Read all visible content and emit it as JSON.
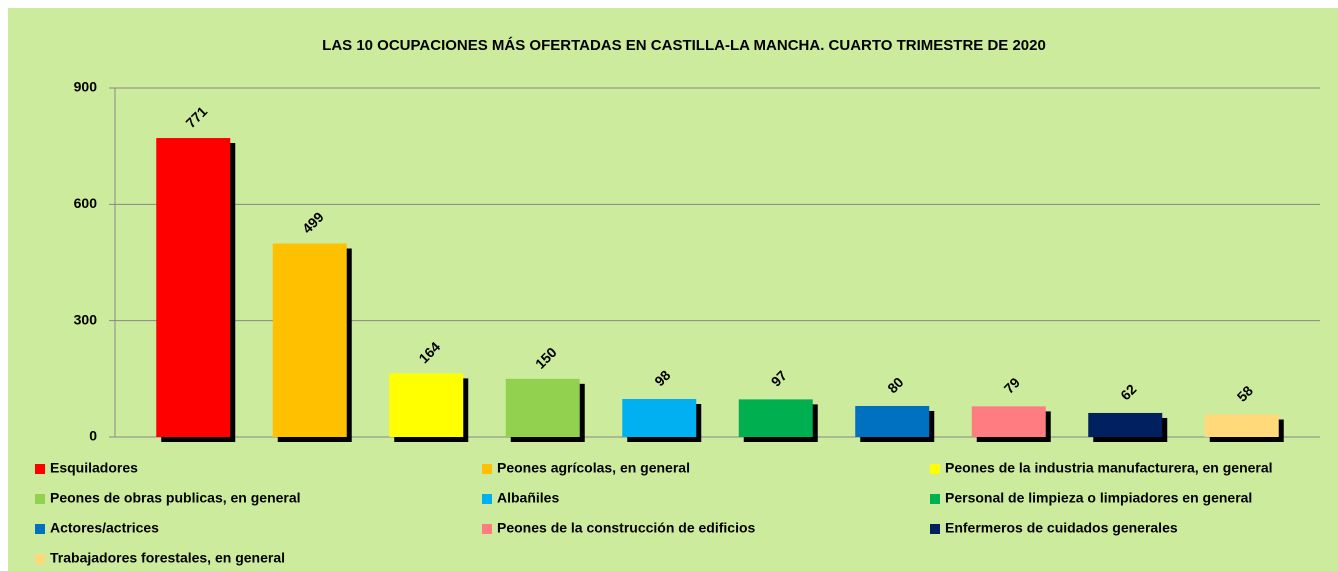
{
  "chart_data": {
    "type": "bar",
    "title": "LAS 10 OCUPACIONES MÁS OFERTADAS EN CASTILLA-LA MANCHA. CUARTO TRIMESTRE DE 2020",
    "categories": [
      "Esquiladores",
      "Peones agrícolas, en general",
      "Peones de la industria manufacturera, en general",
      "Peones de obras publicas, en general",
      "Albañiles",
      "Personal de limpieza o limpiadores en general",
      "Actores/actrices",
      "Peones de la construcción de edificios",
      "Enfermeros de cuidados generales",
      "Trabajadores forestales, en general"
    ],
    "values": [
      771,
      499,
      164,
      150,
      98,
      97,
      80,
      79,
      62,
      58
    ],
    "colors": [
      "#ff0000",
      "#ffc000",
      "#ffff00",
      "#92d050",
      "#00b0f0",
      "#00b050",
      "#0070c0",
      "#ff7c80",
      "#002060",
      "#ffd97a"
    ],
    "ylim": [
      0,
      900
    ],
    "yticks": [
      0,
      300,
      600,
      900
    ],
    "grid": true,
    "legend": "bottom"
  }
}
